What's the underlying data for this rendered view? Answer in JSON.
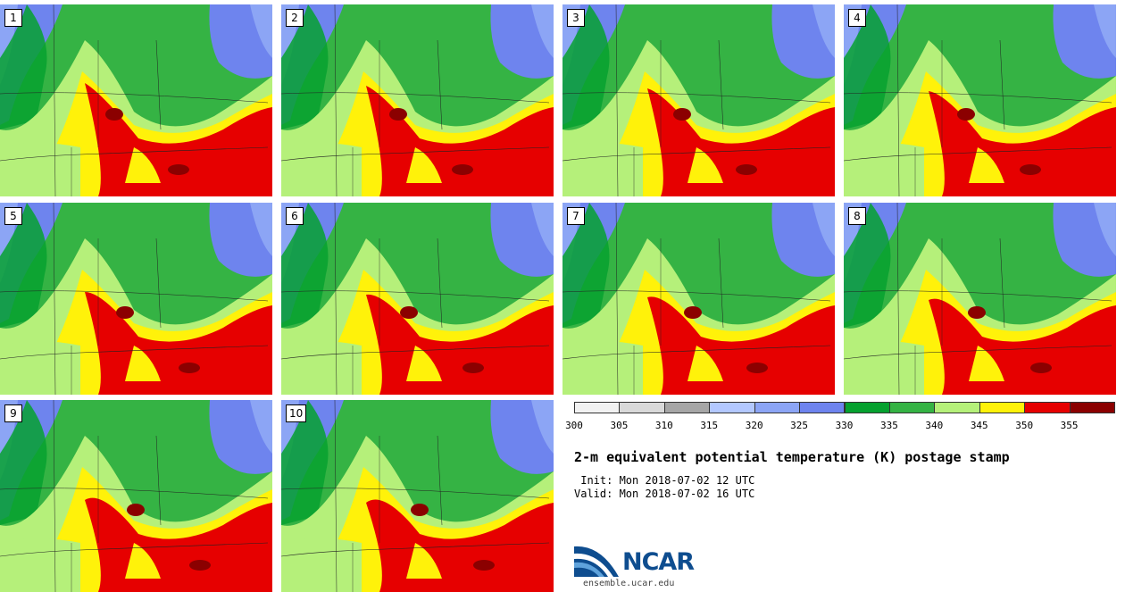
{
  "panels": [
    {
      "label": "1"
    },
    {
      "label": "2"
    },
    {
      "label": "3"
    },
    {
      "label": "4"
    },
    {
      "label": "5"
    },
    {
      "label": "6"
    },
    {
      "label": "7"
    },
    {
      "label": "8"
    },
    {
      "label": "9"
    },
    {
      "label": "10"
    }
  ],
  "colorbar": {
    "ticks": [
      "300",
      "305",
      "310",
      "315",
      "320",
      "325",
      "330",
      "335",
      "340",
      "345",
      "350",
      "355"
    ],
    "colors": [
      "#f2f2f2",
      "#d9d9d9",
      "#a6a6a6",
      "#b3c8ff",
      "#8ca5f5",
      "#6e84ee",
      "#06a12f",
      "#35b344",
      "#b5f07a",
      "#fff20a",
      "#e60000",
      "#8b0000"
    ]
  },
  "title": "2-m equivalent potential temperature (K) postage stamp",
  "init": " Init: Mon 2018-07-02 12 UTC",
  "valid": "Valid: Mon 2018-07-02 16 UTC",
  "logo": {
    "word": "NCAR",
    "url": "ensemble.ucar.edu"
  }
}
